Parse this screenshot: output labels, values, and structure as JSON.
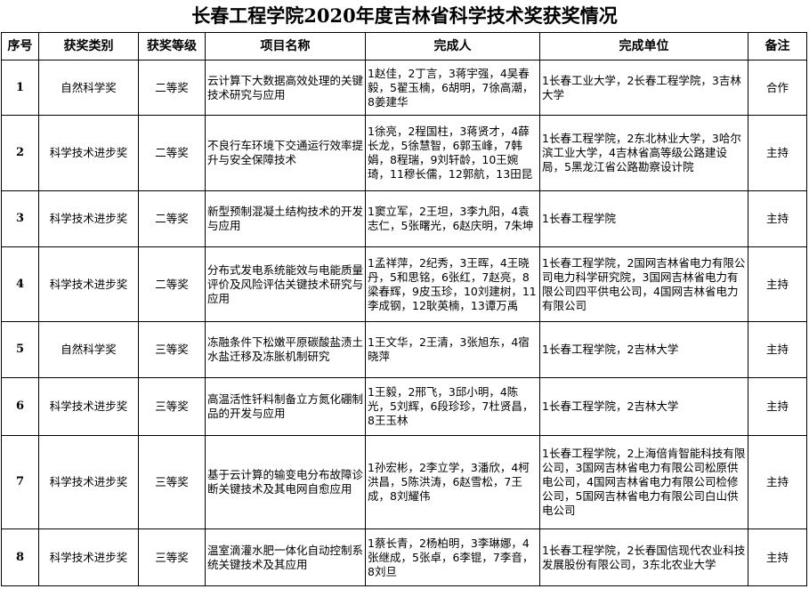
{
  "title": "长春工程学院2020年度吉林省科学技术奖获奖情况",
  "headers": [
    "序号",
    "获奖类别",
    "获奖等级",
    "项目名称",
    "完成人",
    "完成单位",
    "备注"
  ],
  "rows": [
    {
      "no": "1",
      "category": "自然科学奖",
      "level": "二等奖",
      "project": "云计算下大数据高效处理的关键技术研究与应用",
      "people": "1赵佳，2丁言，3蒋宇强，4吴春毅，5翟玉楠，6胡明，7徐高潮，8姜建华",
      "units": "1长春工业大学，2长春工程学院，3吉林大学",
      "note": "合作"
    },
    {
      "no": "2",
      "category": "科学技术进步奖",
      "level": "二等奖",
      "project": "不良行车环境下交通运行效率提升与安全保障技术",
      "people": "1徐亮，2程国柱，3蒋贤才，4薛长龙，5徐慧智，6郭玉峰，7韩娟，8程瑞，9刘轩龄，10王婉琦，11穆长儒，12郭航，13田昆",
      "units": "1长春工程学院，2东北林业大学，3哈尔滨工业大学，4吉林省高等级公路建设局，5黑龙江省公路勘察设计院",
      "note": "主持"
    },
    {
      "no": "3",
      "category": "科学技术进步奖",
      "level": "二等奖",
      "project": "新型预制混凝土结构技术的开发与应用",
      "people": "1窦立军，2王坦，3李九阳，4袁志仁，5张曙光，6赵庆明，7朱坤",
      "units": "1长春工程学院",
      "note": "主持"
    },
    {
      "no": "4",
      "category": "科学技术进步奖",
      "level": "二等奖",
      "project": "分布式发电系统能效与电能质量评价及风险评估关键技术研究与应用",
      "people": "1孟祥萍，2纪秀，3王晖，4王晓丹，5和思铭，6张红，7赵亮，8梁春辉，9皮玉珍，10刘建树，11李成钢，12耿英楠，13谭万禹",
      "units": "1长春工程学院，2国网吉林省电力有限公司电力科学研究院，3国网吉林省电力有限公司四平供电公司，4国网吉林省电力有限公司",
      "note": "主持"
    },
    {
      "no": "5",
      "category": "自然科学奖",
      "level": "三等奖",
      "project": "冻融条件下松嫩平原碳酸盐渍土水盐迁移及冻胀机制研究",
      "people": "1王文华，2王清，3张旭东，4宿晓萍",
      "units": "1长春工程学院，2吉林大学",
      "note": "主持"
    },
    {
      "no": "6",
      "category": "科学技术进步奖",
      "level": "三等奖",
      "project": "高温活性钎料制备立方氮化硼制品的开发与应用",
      "people": "1王毅，2邢飞，3邱小明，4陈光，5刘辉，6段珍珍，7杜贤昌，8王玉林",
      "units": "1长春工程学院，2吉林大学",
      "note": "主持"
    },
    {
      "no": "7",
      "category": "科学技术进步奖",
      "level": "三等奖",
      "project": "基于云计算的输变电分布故障诊断关键技术及其电网自愈应用",
      "people": "1孙宏彬，2李立学，3潘欣，4柯洪昌，5陈洪涛，6赵雪松，7王成，8刘耀伟",
      "units": "1长春工程学院，2上海倍肯智能科技有限公司，3国网吉林省电力有限公司松原供电公司，4国网吉林省电力有限公司检修公司，5国网吉林省电力有限公司白山供电公司",
      "note": "主持"
    },
    {
      "no": "8",
      "category": "科学技术进步奖",
      "level": "三等奖",
      "project": "温室滴灌水肥一体化自动控制系统关键技术及其应用",
      "people": "1蔡长青，2杨柏明，3李琳娜，4张继成，5张卓，6李锟，7李音，8刘旦",
      "units": "1长春工程学院，2长春国信现代农业科技发展股份有限公司，3东北农业大学",
      "note": "主持"
    }
  ]
}
